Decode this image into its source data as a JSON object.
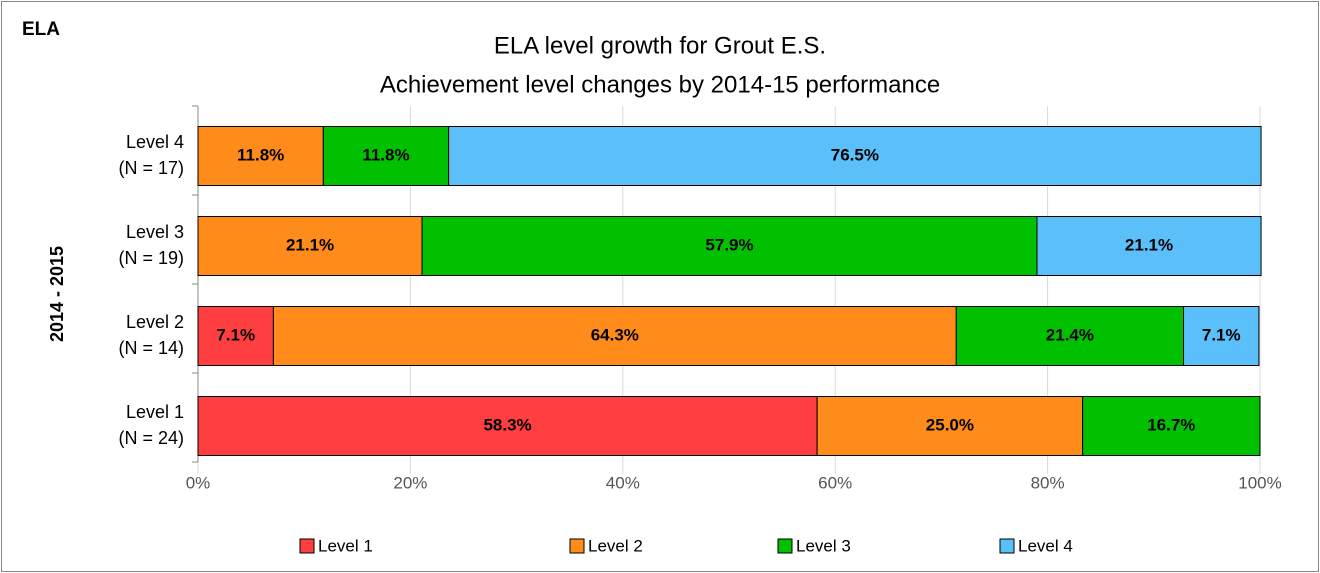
{
  "chart_data": {
    "type": "stacked_barh",
    "title": "ELA level growth for Grout E.S.",
    "subtitle": "Achievement level changes by 2014-15 performance",
    "annotation": "ELA",
    "y_label": "2014 - 2015",
    "categories": [
      [
        "Level 1",
        "(N = 24)"
      ],
      [
        "Level 2",
        "(N = 14)"
      ],
      [
        "Level 3",
        "(N = 19)"
      ],
      [
        "Level 4",
        "(N = 17)"
      ]
    ],
    "series": [
      {
        "name": "Level 1",
        "color": "#ff3f3f",
        "values": [
          58.3,
          7.1,
          null,
          null
        ],
        "value_labels": [
          "58.3%",
          "7.1%",
          null,
          null
        ]
      },
      {
        "name": "Level 2",
        "color": "#ff8c1a",
        "values": [
          25.0,
          64.3,
          21.1,
          11.8
        ],
        "value_labels": [
          "25.0%",
          "64.3%",
          "21.1%",
          "11.8%"
        ]
      },
      {
        "name": "Level 3",
        "color": "#00c000",
        "values": [
          16.7,
          21.4,
          57.9,
          11.8
        ],
        "value_labels": [
          "16.7%",
          "21.4%",
          "57.9%",
          "11.8%"
        ]
      },
      {
        "name": "Level 4",
        "color": "#5bc0fa",
        "values": [
          null,
          7.1,
          21.1,
          76.5
        ],
        "value_labels": [
          null,
          "7.1%",
          "21.1%",
          "76.5%"
        ]
      }
    ],
    "xlim": [
      0,
      100
    ],
    "xticks": [
      {
        "value": 0,
        "label": "0%"
      },
      {
        "value": 20,
        "label": "20%"
      },
      {
        "value": 40,
        "label": "40%"
      },
      {
        "value": 60,
        "label": "60%"
      },
      {
        "value": 80,
        "label": "80%"
      },
      {
        "value": 100,
        "label": "100%"
      }
    ],
    "grid": true,
    "legend": "bottom"
  }
}
